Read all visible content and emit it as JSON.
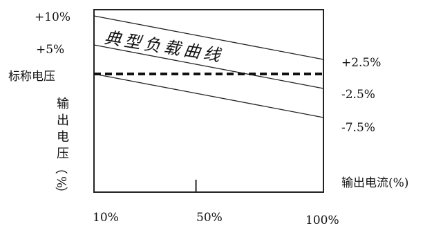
{
  "chart_data": {
    "type": "line",
    "title": "",
    "curve_label": "典型负载曲线",
    "xlabel": "输出电流(%)",
    "ylabel": "输出电压（%）",
    "ylabel_chars": [
      "输",
      "出",
      "电",
      "压",
      "（",
      "%",
      "）"
    ],
    "x_ticks": [
      "10%",
      "50%",
      "100%"
    ],
    "x_tick_values": [
      10,
      50,
      100
    ],
    "xlim": [
      10,
      100
    ],
    "y_axis_left_labels": [
      {
        "label": "+10%",
        "value": 10
      },
      {
        "label": "+5%",
        "value": 5
      },
      {
        "label": "标称电压",
        "value": 0
      }
    ],
    "ylim": [
      -18,
      12
    ],
    "grid": false,
    "series": [
      {
        "x": [
          10,
          100
        ],
        "y": [
          10,
          2.5
        ],
        "end_label": "+2.5%",
        "style": "solid"
      },
      {
        "x": [
          10,
          100
        ],
        "y": [
          5,
          -2.5
        ],
        "end_label": "-2.5%",
        "style": "solid"
      },
      {
        "x": [
          10,
          100
        ],
        "y": [
          0,
          -7.5
        ],
        "end_label": "-7.5%",
        "style": "solid"
      },
      {
        "x": [
          10,
          100
        ],
        "y": [
          0,
          0
        ],
        "end_label": "",
        "style": "dashed"
      }
    ],
    "colors": {
      "line": "#222222",
      "dashed": "#111111"
    }
  }
}
